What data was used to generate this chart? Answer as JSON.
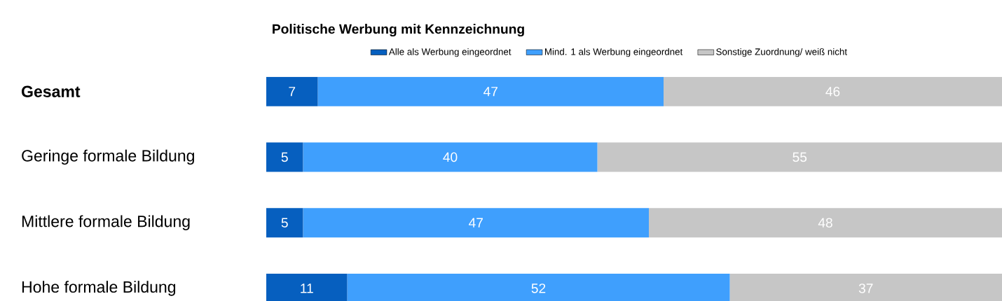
{
  "chart_data": {
    "type": "bar",
    "orientation": "horizontal",
    "stacked": true,
    "title": "Politische Werbung mit Kennzeichnung",
    "categories": [
      "**Gesamt**",
      "Geringe formale Bildung",
      "Mittlere formale Bildung",
      "Hohe formale Bildung"
    ],
    "series": [
      {
        "name": "Alle als Werbung eingeordnet",
        "color": "#065fbf",
        "values": [
          7,
          5,
          5,
          11
        ]
      },
      {
        "name": "Mind. 1 als Werbung eingeordnet",
        "color": "#3f9ffd",
        "values": [
          47,
          40,
          47,
          52
        ]
      },
      {
        "name": "Sonstige Zuordnung/ weiß nicht",
        "color": "#c6c6c6",
        "values": [
          46,
          55,
          48,
          37
        ]
      }
    ],
    "data_labels": true,
    "legend": "top"
  }
}
